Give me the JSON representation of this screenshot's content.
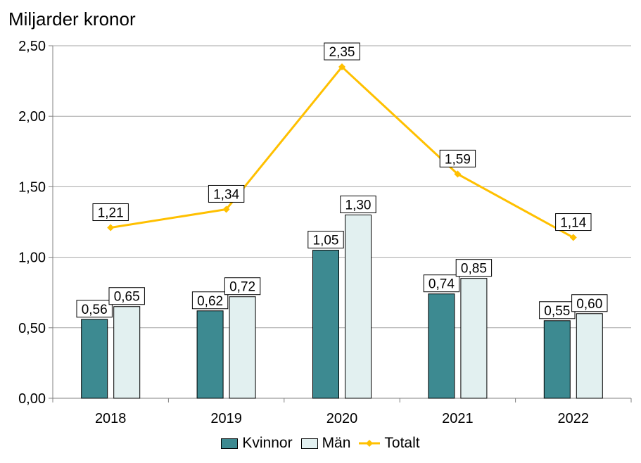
{
  "chart_data": {
    "type": "bar",
    "title": "Miljarder kronor",
    "categories": [
      "2018",
      "2019",
      "2020",
      "2021",
      "2022"
    ],
    "series": [
      {
        "name": "Kvinnor",
        "type": "bar",
        "color": "#3d8a91",
        "values": [
          0.56,
          0.62,
          1.05,
          0.74,
          0.55
        ],
        "labels": [
          "0,56",
          "0,62",
          "1,05",
          "0,74",
          "0,55"
        ]
      },
      {
        "name": "Män",
        "type": "bar",
        "color": "#e2f0f0",
        "values": [
          0.65,
          0.72,
          1.3,
          0.85,
          0.6
        ],
        "labels": [
          "0,65",
          "0,72",
          "1,30",
          "0,85",
          "0,60"
        ]
      },
      {
        "name": "Totalt",
        "type": "line",
        "color": "#ffc000",
        "values": [
          1.21,
          1.34,
          2.35,
          1.59,
          1.14
        ],
        "labels": [
          "1,21",
          "1,34",
          "2,35",
          "1,59",
          "1,14"
        ]
      }
    ],
    "ylim": [
      0,
      2.5
    ],
    "yticks": [
      0,
      0.5,
      1.0,
      1.5,
      2.0,
      2.5
    ],
    "ytick_labels": [
      "0,00",
      "0,50",
      "1,00",
      "1,50",
      "2,00",
      "2,50"
    ],
    "xlabel": "",
    "ylabel": "Miljarder kronor",
    "grid": true,
    "legend": "bottom"
  }
}
